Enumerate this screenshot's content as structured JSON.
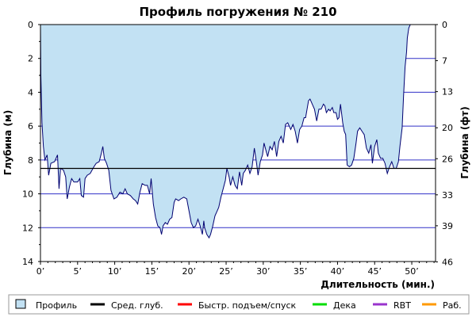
{
  "chart_data": {
    "type": "area",
    "title": "Профиль погружения № 210",
    "xlabel": "Длительность (мин.)",
    "ylabel_left": "Глубина (м)",
    "ylabel_right": "Глубина (фт)",
    "x_ticks": [
      "0’",
      "5’",
      "10’",
      "15’",
      "20’",
      "25’",
      "30’",
      "35’",
      "40’",
      "45’",
      "50’"
    ],
    "x_tick_values": [
      0,
      5,
      10,
      15,
      20,
      25,
      30,
      35,
      40,
      45,
      50
    ],
    "xlim": [
      0,
      53.2
    ],
    "ylim": [
      0,
      14
    ],
    "y_ticks_m": [
      "0",
      "2",
      "4",
      "6",
      "8",
      "10",
      "12",
      "14"
    ],
    "y_tick_values_m": [
      0,
      2,
      4,
      6,
      8,
      10,
      12,
      14
    ],
    "y_ticks_ft": [
      "0",
      "7",
      "13",
      "20",
      "26",
      "33",
      "39",
      "46"
    ],
    "y_tick_values_ft": [
      0,
      7,
      13,
      20,
      26,
      33,
      39,
      46
    ],
    "grid": true,
    "avg_depth_m": 8.5,
    "colors": {
      "profile_fill": "#c2e1f3",
      "profile_line": "#000070",
      "grid": "#3030c8",
      "avg_line": "#000000",
      "fast_ascent": "#ff0000",
      "deco": "#00dd00",
      "rbt": "#9933cc",
      "work": "#ff9900"
    },
    "legend": [
      {
        "key": "profile",
        "label": "Профиль"
      },
      {
        "key": "avg",
        "label": "Сред. глуб."
      },
      {
        "key": "fast",
        "label": "Быстр. подъем/спуск"
      },
      {
        "key": "deco",
        "label": "Дека"
      },
      {
        "key": "rbt",
        "label": "RBT"
      },
      {
        "key": "work",
        "label": "Раб."
      }
    ],
    "series": [
      {
        "name": "Профиль",
        "points": [
          [
            0,
            0
          ],
          [
            0.05,
            3.0
          ],
          [
            0.2,
            5.8
          ],
          [
            0.4,
            7.2
          ],
          [
            0.6,
            8.0
          ],
          [
            0.9,
            7.7
          ],
          [
            1.1,
            8.9
          ],
          [
            1.4,
            8.2
          ],
          [
            1.9,
            8.1
          ],
          [
            2.3,
            7.7
          ],
          [
            2.5,
            9.7
          ],
          [
            2.7,
            8.5
          ],
          [
            3.1,
            8.6
          ],
          [
            3.4,
            9.0
          ],
          [
            3.6,
            10.3
          ],
          [
            3.9,
            9.6
          ],
          [
            4.2,
            9.1
          ],
          [
            4.5,
            9.3
          ],
          [
            5.0,
            9.3
          ],
          [
            5.3,
            9.1
          ],
          [
            5.5,
            10.1
          ],
          [
            5.8,
            10.2
          ],
          [
            6.0,
            9.1
          ],
          [
            6.3,
            8.9
          ],
          [
            6.7,
            8.8
          ],
          [
            7.2,
            8.4
          ],
          [
            7.5,
            8.2
          ],
          [
            7.9,
            8.1
          ],
          [
            8.2,
            7.6
          ],
          [
            8.4,
            7.2
          ],
          [
            8.6,
            7.9
          ],
          [
            8.9,
            8.2
          ],
          [
            9.2,
            8.6
          ],
          [
            9.5,
            9.8
          ],
          [
            9.9,
            10.3
          ],
          [
            10.3,
            10.2
          ],
          [
            10.7,
            9.9
          ],
          [
            11.1,
            10.0
          ],
          [
            11.4,
            9.7
          ],
          [
            11.7,
            10.0
          ],
          [
            12.1,
            10.1
          ],
          [
            12.5,
            10.3
          ],
          [
            12.8,
            10.4
          ],
          [
            13.1,
            10.6
          ],
          [
            13.4,
            9.9
          ],
          [
            13.7,
            9.4
          ],
          [
            14.1,
            9.5
          ],
          [
            14.4,
            9.5
          ],
          [
            14.7,
            10.0
          ],
          [
            14.9,
            9.1
          ],
          [
            15.2,
            10.6
          ],
          [
            15.5,
            11.4
          ],
          [
            15.8,
            11.9
          ],
          [
            16.1,
            12.0
          ],
          [
            16.3,
            12.4
          ],
          [
            16.5,
            11.9
          ],
          [
            16.8,
            11.7
          ],
          [
            17.1,
            11.8
          ],
          [
            17.4,
            11.5
          ],
          [
            17.7,
            11.4
          ],
          [
            18.0,
            10.5
          ],
          [
            18.2,
            10.3
          ],
          [
            18.6,
            10.4
          ],
          [
            18.9,
            10.3
          ],
          [
            19.3,
            10.2
          ],
          [
            19.7,
            10.3
          ],
          [
            20.0,
            11.0
          ],
          [
            20.3,
            11.7
          ],
          [
            20.6,
            12.0
          ],
          [
            20.9,
            11.9
          ],
          [
            21.2,
            11.5
          ],
          [
            21.5,
            11.9
          ],
          [
            21.8,
            12.4
          ],
          [
            22.0,
            11.6
          ],
          [
            22.1,
            12.0
          ],
          [
            22.4,
            12.4
          ],
          [
            22.7,
            12.6
          ],
          [
            22.9,
            12.4
          ],
          [
            23.2,
            11.9
          ],
          [
            23.5,
            11.3
          ],
          [
            23.7,
            11.1
          ],
          [
            24.0,
            10.8
          ],
          [
            24.3,
            10.2
          ],
          [
            24.6,
            9.7
          ],
          [
            24.9,
            9.2
          ],
          [
            25.1,
            8.5
          ],
          [
            25.4,
            9.0
          ],
          [
            25.6,
            9.5
          ],
          [
            25.9,
            9.0
          ],
          [
            26.2,
            9.5
          ],
          [
            26.5,
            9.7
          ],
          [
            26.8,
            8.7
          ],
          [
            27.1,
            9.5
          ],
          [
            27.3,
            8.8
          ],
          [
            27.6,
            8.6
          ],
          [
            27.9,
            8.3
          ],
          [
            28.2,
            8.8
          ],
          [
            28.5,
            8.4
          ],
          [
            28.8,
            7.3
          ],
          [
            29.1,
            8.2
          ],
          [
            29.3,
            8.9
          ],
          [
            29.6,
            8.1
          ],
          [
            29.9,
            7.7
          ],
          [
            30.1,
            7.0
          ],
          [
            30.4,
            7.5
          ],
          [
            30.6,
            7.8
          ],
          [
            30.9,
            7.2
          ],
          [
            31.2,
            7.4
          ],
          [
            31.5,
            6.9
          ],
          [
            31.8,
            7.8
          ],
          [
            32.1,
            6.9
          ],
          [
            32.4,
            6.6
          ],
          [
            32.7,
            7.0
          ],
          [
            33.0,
            5.9
          ],
          [
            33.3,
            5.8
          ],
          [
            33.7,
            6.2
          ],
          [
            34.0,
            5.9
          ],
          [
            34.3,
            6.3
          ],
          [
            34.6,
            7.0
          ],
          [
            34.9,
            6.2
          ],
          [
            35.2,
            6.0
          ],
          [
            35.5,
            5.5
          ],
          [
            35.7,
            5.5
          ],
          [
            36.1,
            4.5
          ],
          [
            36.3,
            4.4
          ],
          [
            36.6,
            4.7
          ],
          [
            36.9,
            5.0
          ],
          [
            37.2,
            5.7
          ],
          [
            37.5,
            5.0
          ],
          [
            37.8,
            5.0
          ],
          [
            38.1,
            4.7
          ],
          [
            38.3,
            4.8
          ],
          [
            38.5,
            5.2
          ],
          [
            38.8,
            5.0
          ],
          [
            39.0,
            5.1
          ],
          [
            39.3,
            4.9
          ],
          [
            39.5,
            5.2
          ],
          [
            39.8,
            5.2
          ],
          [
            40.0,
            5.6
          ],
          [
            40.2,
            5.5
          ],
          [
            40.4,
            4.7
          ],
          [
            40.7,
            5.8
          ],
          [
            40.9,
            6.3
          ],
          [
            41.1,
            6.5
          ],
          [
            41.3,
            8.3
          ],
          [
            41.6,
            8.4
          ],
          [
            41.9,
            8.3
          ],
          [
            42.2,
            7.9
          ],
          [
            42.5,
            7.0
          ],
          [
            42.7,
            6.3
          ],
          [
            43.0,
            6.1
          ],
          [
            43.3,
            6.3
          ],
          [
            43.6,
            6.5
          ],
          [
            43.9,
            7.3
          ],
          [
            44.2,
            7.6
          ],
          [
            44.5,
            7.1
          ],
          [
            44.7,
            8.2
          ],
          [
            45.0,
            7.2
          ],
          [
            45.3,
            6.8
          ],
          [
            45.5,
            7.6
          ],
          [
            45.8,
            7.9
          ],
          [
            46.1,
            7.9
          ],
          [
            46.4,
            8.2
          ],
          [
            46.7,
            8.8
          ],
          [
            47.0,
            8.4
          ],
          [
            47.3,
            8.1
          ],
          [
            47.6,
            8.5
          ],
          [
            47.9,
            8.5
          ],
          [
            48.2,
            8.1
          ],
          [
            48.4,
            7.2
          ],
          [
            48.7,
            6.1
          ],
          [
            48.9,
            4.2
          ],
          [
            49.1,
            2.5
          ],
          [
            49.3,
            1.6
          ],
          [
            49.4,
            0.8
          ],
          [
            49.6,
            0.2
          ],
          [
            49.8,
            0
          ]
        ]
      }
    ]
  }
}
